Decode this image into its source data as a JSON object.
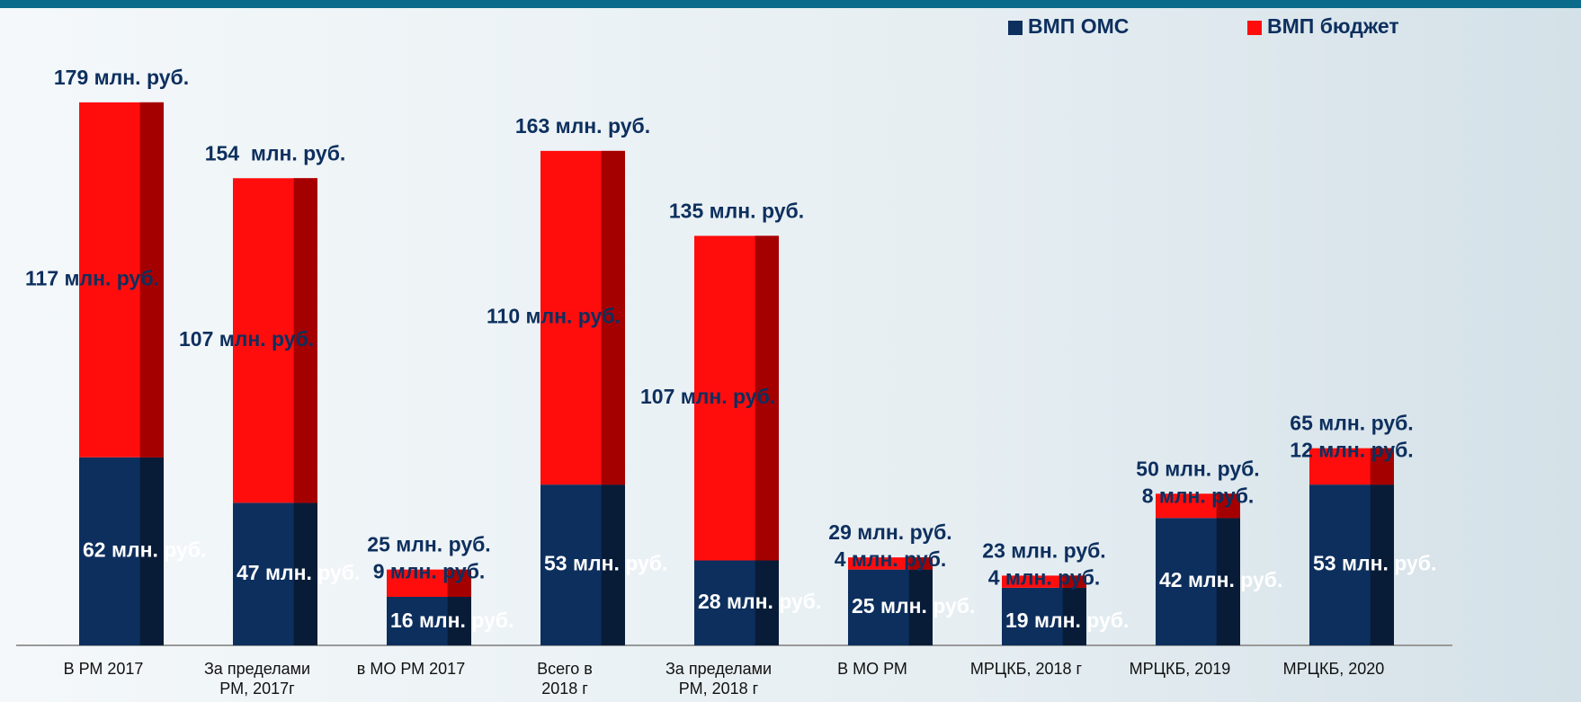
{
  "chart_data": {
    "type": "stacked-bar",
    "categories": [
      [
        "В РМ 2017"
      ],
      [
        "За пределами",
        "РМ, 2017г"
      ],
      [
        "в МО РМ 2017"
      ],
      [
        "Всего в",
        "2018 г"
      ],
      [
        "За пределами",
        "РМ, 2018 г"
      ],
      [
        "В МО РМ"
      ],
      [
        "МРЦКБ, 2018 г"
      ],
      [
        "МРЦКБ, 2019"
      ],
      [
        "МРЦКБ, 2020"
      ]
    ],
    "series": [
      {
        "name": "ВМП ОМС",
        "color": "#0d2f5e",
        "shade": "#081c38",
        "values": [
          62,
          47,
          16,
          53,
          28,
          25,
          19,
          42,
          53
        ],
        "value_labels": [
          "62 млн. руб.",
          "47 млн. руб.",
          "16 млн. руб.",
          "53 млн. руб.",
          "28 млн. руб.",
          "25 млн. руб.",
          "19 млн. руб.",
          "42 млн. руб.",
          "53 млн. руб."
        ]
      },
      {
        "name": "ВМП бюджет",
        "color": "#ff0d0d",
        "shade": "#a50000",
        "values": [
          117,
          107,
          9,
          110,
          107,
          4,
          4,
          8,
          12
        ],
        "value_labels": [
          "117 млн. руб.",
          "107 млн. руб.",
          "9 млн. руб.",
          "110 млн. руб.",
          "107 млн. руб.",
          "4 млн. руб.",
          "4 млн. руб.",
          "8 млн. руб.",
          "12 млн. руб."
        ]
      }
    ],
    "totals": [
      179,
      154,
      25,
      163,
      135,
      29,
      23,
      50,
      65
    ],
    "total_labels": [
      "179 млн. руб.",
      "154  млн. руб.",
      "25 млн. руб.",
      "163 млн. руб.",
      "135 млн. руб.",
      "29 млн. руб.",
      "23 млн. руб.",
      "50 млн. руб.",
      "65 млн. руб."
    ],
    "legend": "top-right"
  }
}
